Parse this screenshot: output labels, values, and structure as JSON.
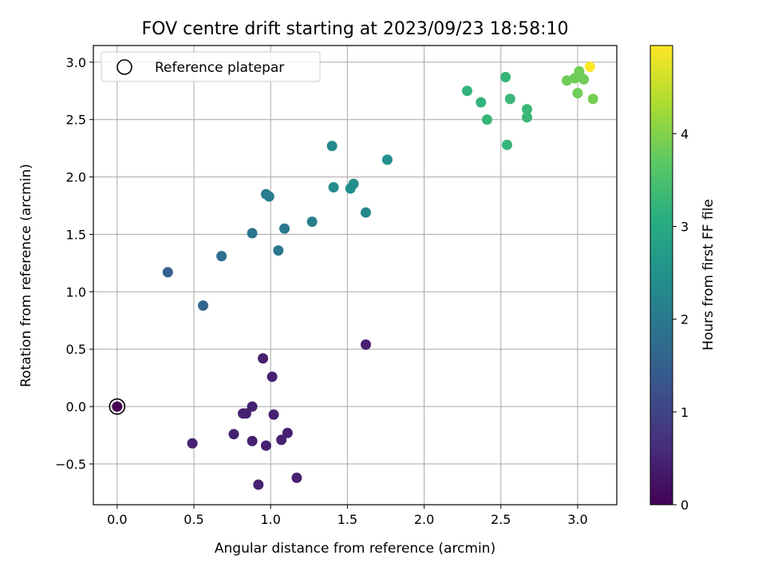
{
  "chart_data": {
    "type": "scatter",
    "title": "FOV centre drift starting at 2023/09/23 18:58:10",
    "xlabel": "Angular distance from reference (arcmin)",
    "ylabel": "Rotation from reference (arcmin)",
    "xlim": [
      -0.155,
      3.255
    ],
    "ylim": [
      -0.855,
      3.145
    ],
    "xticks": [
      0.0,
      0.5,
      1.0,
      1.5,
      2.0,
      2.5,
      3.0
    ],
    "xtick_labels": [
      "0.0",
      "0.5",
      "1.0",
      "1.5",
      "2.0",
      "2.5",
      "3.0"
    ],
    "yticks": [
      -0.5,
      0.0,
      0.5,
      1.0,
      1.5,
      2.0,
      2.5,
      3.0
    ],
    "ytick_labels": [
      "−0.5",
      "0.0",
      "0.5",
      "1.0",
      "1.5",
      "2.0",
      "2.5",
      "3.0"
    ],
    "grid": true,
    "legend": {
      "placement": "top-left",
      "entries": [
        "Reference platepar"
      ]
    },
    "reference_point": {
      "x": 0.0,
      "y": 0.0,
      "label": "Reference platepar"
    },
    "colorbar": {
      "label": "Hours from first FF file",
      "colormap": "viridis",
      "range": [
        0,
        4.95
      ],
      "ticks": [
        0,
        1,
        2,
        3,
        4
      ],
      "tick_labels": [
        "0",
        "1",
        "2",
        "3",
        "4"
      ]
    },
    "points": [
      {
        "x": 0.0,
        "y": 0.0,
        "c": 0.0
      },
      {
        "x": 0.49,
        "y": -0.32,
        "c": 0.45
      },
      {
        "x": 0.76,
        "y": -0.24,
        "c": 0.45
      },
      {
        "x": 0.82,
        "y": -0.06,
        "c": 0.45
      },
      {
        "x": 0.84,
        "y": -0.06,
        "c": 0.45
      },
      {
        "x": 0.88,
        "y": 0.0,
        "c": 0.45
      },
      {
        "x": 0.88,
        "y": -0.3,
        "c": 0.45
      },
      {
        "x": 0.92,
        "y": -0.68,
        "c": 0.45
      },
      {
        "x": 0.95,
        "y": 0.42,
        "c": 0.45
      },
      {
        "x": 0.97,
        "y": -0.34,
        "c": 0.45
      },
      {
        "x": 1.01,
        "y": 0.26,
        "c": 0.45
      },
      {
        "x": 1.02,
        "y": -0.07,
        "c": 0.45
      },
      {
        "x": 1.07,
        "y": -0.29,
        "c": 0.45
      },
      {
        "x": 1.11,
        "y": -0.23,
        "c": 0.45
      },
      {
        "x": 1.17,
        "y": -0.62,
        "c": 0.45
      },
      {
        "x": 1.62,
        "y": 0.54,
        "c": 0.45
      },
      {
        "x": 0.33,
        "y": 1.17,
        "c": 1.55
      },
      {
        "x": 0.56,
        "y": 0.88,
        "c": 1.6
      },
      {
        "x": 0.68,
        "y": 1.31,
        "c": 1.8
      },
      {
        "x": 0.88,
        "y": 1.51,
        "c": 1.9
      },
      {
        "x": 1.05,
        "y": 1.36,
        "c": 1.95
      },
      {
        "x": 1.09,
        "y": 1.55,
        "c": 2.0
      },
      {
        "x": 0.97,
        "y": 1.85,
        "c": 2.05
      },
      {
        "x": 0.99,
        "y": 1.83,
        "c": 2.05
      },
      {
        "x": 1.27,
        "y": 1.61,
        "c": 2.15
      },
      {
        "x": 1.62,
        "y": 1.69,
        "c": 2.3
      },
      {
        "x": 1.4,
        "y": 2.27,
        "c": 2.35
      },
      {
        "x": 1.41,
        "y": 1.91,
        "c": 2.35
      },
      {
        "x": 1.52,
        "y": 1.9,
        "c": 2.4
      },
      {
        "x": 1.54,
        "y": 1.94,
        "c": 2.4
      },
      {
        "x": 1.76,
        "y": 2.15,
        "c": 2.45
      },
      {
        "x": 2.28,
        "y": 2.75,
        "c": 3.2
      },
      {
        "x": 2.37,
        "y": 2.65,
        "c": 3.2
      },
      {
        "x": 2.41,
        "y": 2.5,
        "c": 3.25
      },
      {
        "x": 2.53,
        "y": 2.87,
        "c": 3.25
      },
      {
        "x": 2.54,
        "y": 2.28,
        "c": 3.25
      },
      {
        "x": 2.56,
        "y": 2.68,
        "c": 3.3
      },
      {
        "x": 2.67,
        "y": 2.59,
        "c": 3.3
      },
      {
        "x": 2.67,
        "y": 2.52,
        "c": 3.3
      },
      {
        "x": 2.93,
        "y": 2.84,
        "c": 3.85
      },
      {
        "x": 2.98,
        "y": 2.86,
        "c": 3.85
      },
      {
        "x": 3.0,
        "y": 2.73,
        "c": 3.85
      },
      {
        "x": 3.01,
        "y": 2.92,
        "c": 3.85
      },
      {
        "x": 3.02,
        "y": 2.87,
        "c": 3.85
      },
      {
        "x": 3.04,
        "y": 2.85,
        "c": 3.85
      },
      {
        "x": 3.1,
        "y": 2.68,
        "c": 3.9
      },
      {
        "x": 3.08,
        "y": 2.96,
        "c": 4.95
      }
    ]
  }
}
